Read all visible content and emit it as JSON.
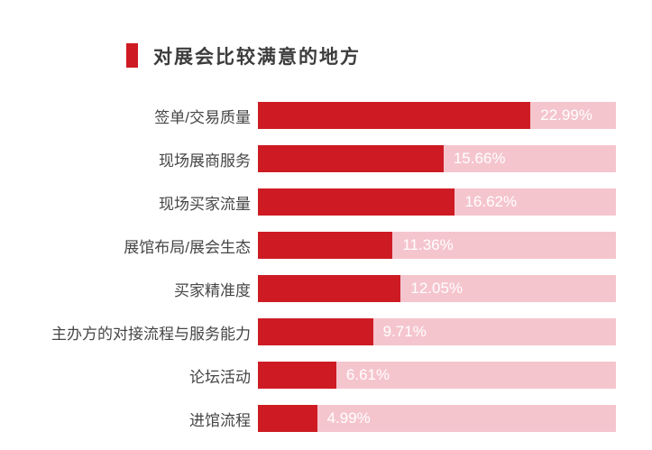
{
  "header": {
    "title": "对展会比较满意的地方"
  },
  "chart_data": {
    "type": "bar",
    "orientation": "horizontal",
    "title": "对展会比较满意的地方",
    "categories": [
      "签单/交易质量",
      "现场展商服务",
      "现场买家流量",
      "展馆布局/展会生态",
      "买家精准度",
      "主办方的对接流程与服务能力",
      "论坛活动",
      "进馆流程"
    ],
    "values": [
      22.99,
      15.66,
      16.62,
      11.36,
      12.05,
      9.71,
      6.61,
      4.99
    ],
    "value_labels": [
      "22.99%",
      "15.66%",
      "16.62%",
      "11.36%",
      "12.05%",
      "9.71%",
      "6.61%",
      "4.99%"
    ],
    "xlabel": "",
    "ylabel": "",
    "xlim": [
      0,
      30.2
    ],
    "grid": false,
    "legend": "none",
    "bar_color": "#ce1b23",
    "track_color": "#f5c5ce",
    "value_label_color": "#ffffff",
    "category_label_color": "#464646",
    "title_color": "#3c3c3c"
  }
}
